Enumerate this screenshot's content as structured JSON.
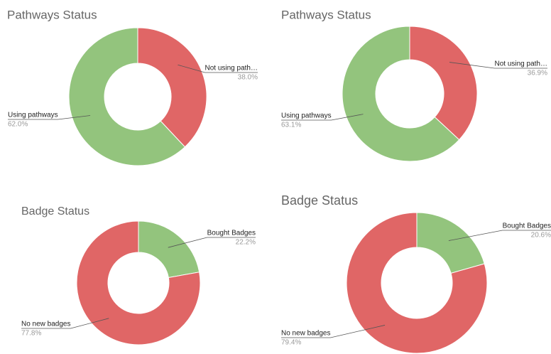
{
  "chart_data": [
    {
      "type": "pie",
      "title": "Pathways Status",
      "categories": [
        "Not using path…",
        "Using pathways"
      ],
      "values": [
        38.0,
        62.0
      ],
      "value_labels": [
        "38.0%",
        "62.0%"
      ],
      "colors": [
        "#e06666",
        "#93c47d"
      ]
    },
    {
      "type": "pie",
      "title": "Pathways Status",
      "categories": [
        "Not using path…",
        "Using pathways"
      ],
      "values": [
        36.9,
        63.1
      ],
      "value_labels": [
        "36.9%",
        "63.1%"
      ],
      "colors": [
        "#e06666",
        "#93c47d"
      ]
    },
    {
      "type": "pie",
      "title": "Badge Status",
      "categories": [
        "Bought Badges",
        "No new badges"
      ],
      "values": [
        22.2,
        77.8
      ],
      "value_labels": [
        "22.2%",
        "77.8%"
      ],
      "colors": [
        "#93c47d",
        "#e06666"
      ]
    },
    {
      "type": "pie",
      "title": "Badge Status",
      "categories": [
        "Bought Badges",
        "No new badges"
      ],
      "values": [
        20.6,
        79.4
      ],
      "value_labels": [
        "20.6%",
        "79.4%"
      ],
      "colors": [
        "#93c47d",
        "#e06666"
      ]
    }
  ]
}
